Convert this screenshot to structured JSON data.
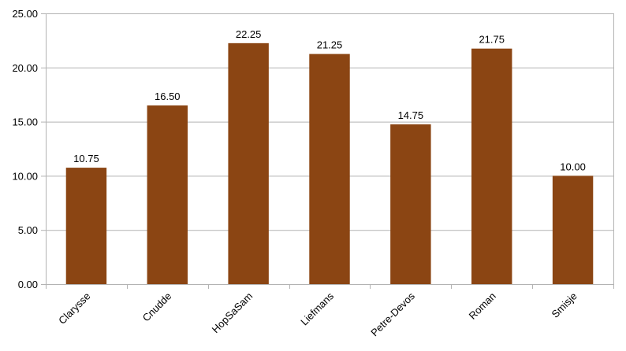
{
  "chart_data": {
    "type": "bar",
    "title": "",
    "xlabel": "",
    "ylabel": "",
    "categories": [
      "Clarysse",
      "Cnudde",
      "HopSaSam",
      "Liefmans",
      "Petre-Devos",
      "Roman",
      "Smisje"
    ],
    "values": [
      10.75,
      16.5,
      22.25,
      21.25,
      14.75,
      21.75,
      10.0
    ],
    "value_labels": [
      "10.75",
      "16.50",
      "22.25",
      "21.25",
      "14.75",
      "21.75",
      "10.00"
    ],
    "ylim": [
      0,
      25
    ],
    "yticks": [
      0,
      5,
      10,
      15,
      20,
      25
    ],
    "ytick_labels": [
      "0.00",
      "5.00",
      "10.00",
      "15.00",
      "20.00",
      "25.00"
    ],
    "grid": true,
    "legend": "none",
    "bar_color": "#8B4513",
    "grid_color": "#b3b3b3"
  }
}
